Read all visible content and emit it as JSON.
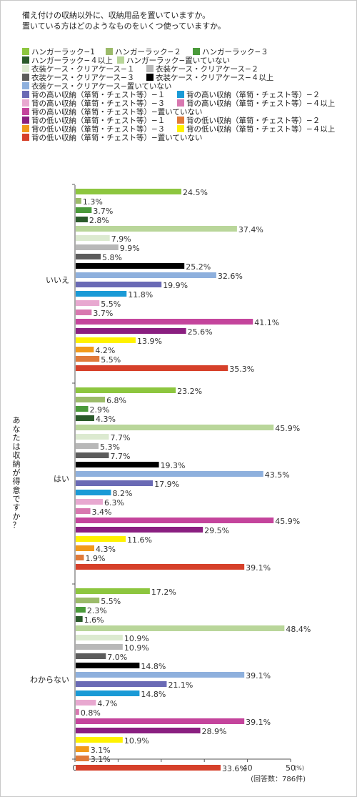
{
  "question": {
    "line1": "備え付けの収納以外に、収納用品を置いていますか。",
    "line2": "置いている方はどのようなものをいくつ使っていますか。"
  },
  "chart_data": {
    "type": "bar",
    "orientation": "horizontal",
    "ylabel": "あなたは収納が得意ですか？",
    "xlim": [
      0,
      50
    ],
    "xticks": [
      "0",
      "10",
      "20",
      "30",
      "40",
      "50"
    ],
    "x_unit": "(%)",
    "note": "(回答数：786件)",
    "grid": false,
    "value_suffix": "%",
    "series": [
      {
        "name": "ハンガーラック−1",
        "color": "#8dc63f"
      },
      {
        "name": "ハンガーラック−２",
        "color": "#9cbb6a"
      },
      {
        "name": "ハンガーラック−３",
        "color": "#4a9a3a"
      },
      {
        "name": "ハンガーラック−４以上",
        "color": "#2a5a2a"
      },
      {
        "name": "ハンガーラック−置いていない",
        "color": "#b9d69a"
      },
      {
        "name": "衣装ケース・クリアケース−１",
        "color": "#dcead0"
      },
      {
        "name": "衣装ケース・クリアケース−２",
        "color": "#b8b8b8"
      },
      {
        "name": "衣装ケース・クリアケース−３",
        "color": "#5c5c5c"
      },
      {
        "name": "衣装ケース・クリアケース−４以上",
        "color": "#000000"
      },
      {
        "name": "衣装ケース・クリアケース−置いていない",
        "color": "#8eb0dd"
      },
      {
        "name": "背の高い収納（箪笥・チェスト等）−１",
        "color": "#6a6ab5"
      },
      {
        "name": "背の高い収納（箪笥・チェスト等）−２",
        "color": "#1a9ad6"
      },
      {
        "name": "背の高い収納（箪笥・チェスト等）−３",
        "color": "#e8a8d0"
      },
      {
        "name": "背の高い収納（箪笥・チェスト等）−４以上",
        "color": "#d878b0"
      },
      {
        "name": "背の高い収納（箪笥・チェスト等）−置いていない",
        "color": "#c4449c"
      },
      {
        "name": "背の低い収納（箪笥・チェスト等）−１",
        "color": "#8a1f80"
      },
      {
        "name": "背の低い収納（箪笥・チェスト等）−２",
        "color": "#e07a3a"
      },
      {
        "name": "背の低い収納（箪笥・チェスト等）−３",
        "color": "#f29a1a"
      },
      {
        "name": "背の低い収納（箪笥・チェスト等）−４以上",
        "color": "#fff200"
      },
      {
        "name": "背の低い収納（箪笥・チェスト等）−置いていない",
        "color": "#d6402a"
      }
    ],
    "bar_colors_order": [
      "#8dc63f",
      "#9cbb6a",
      "#4a9a3a",
      "#2a5a2a",
      "#b9d69a",
      "#dcead0",
      "#b8b8b8",
      "#5c5c5c",
      "#000000",
      "#8eb0dd",
      "#6a6ab5",
      "#1a9ad6",
      "#e8a8d0",
      "#d878b0",
      "#c4449c",
      "#8a1f80",
      "#fff200",
      "#f29a1a",
      "#e07a3a",
      "#d6402a"
    ],
    "categories": [
      "いいえ",
      "はい",
      "わからない"
    ],
    "groups": [
      {
        "category": "いいえ",
        "values": [
          24.5,
          1.3,
          3.7,
          2.8,
          37.4,
          7.9,
          9.9,
          5.8,
          25.2,
          32.6,
          19.9,
          11.8,
          5.5,
          3.7,
          41.1,
          25.6,
          13.9,
          4.2,
          5.5,
          35.3
        ]
      },
      {
        "category": "はい",
        "values": [
          23.2,
          6.8,
          2.9,
          4.3,
          45.9,
          7.7,
          5.3,
          7.7,
          19.3,
          43.5,
          17.9,
          8.2,
          6.3,
          3.4,
          45.9,
          29.5,
          11.6,
          4.3,
          1.9,
          39.1
        ]
      },
      {
        "category": "わからない",
        "values": [
          17.2,
          5.5,
          2.3,
          1.6,
          48.4,
          10.9,
          10.9,
          7.0,
          14.8,
          39.1,
          21.1,
          14.8,
          4.7,
          0.8,
          39.1,
          28.9,
          10.9,
          3.1,
          3.1,
          33.6
        ]
      }
    ]
  }
}
